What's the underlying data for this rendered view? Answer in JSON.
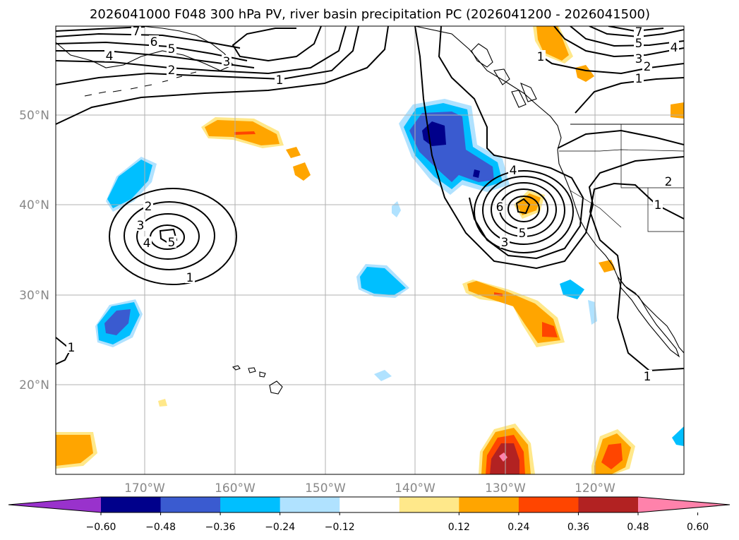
{
  "title": "2026041000 F048 300 hPa PV, river basin precipitation PC (2026041200 - 2026041500)",
  "map": {
    "lon_labels": [
      "170°W",
      "160°W",
      "150°W",
      "140°W",
      "130°W",
      "120°W"
    ],
    "lat_labels": [
      "50°N",
      "40°N",
      "30°N",
      "20°N"
    ],
    "contour_levels": [
      "1",
      "1",
      "1",
      "1",
      "1",
      "1",
      "2",
      "2",
      "2",
      "3",
      "3",
      "3",
      "4",
      "4",
      "4",
      "5",
      "5",
      "5",
      "6",
      "6",
      "7",
      "7"
    ]
  },
  "colorbar": {
    "ticks": [
      "−0.60",
      "−0.48",
      "−0.36",
      "−0.24",
      "−0.12",
      "0.12",
      "0.24",
      "0.36",
      "0.48",
      "0.60"
    ],
    "colors": [
      "#9932cc",
      "#00008b",
      "#3a5bd0",
      "#00bfff",
      "#b0e2ff",
      "#ffffff",
      "#ffe88a",
      "#ffa500",
      "#ff4500",
      "#b22222",
      "#ff82ab"
    ]
  },
  "fill_colors": {
    "neg_light": "#b0e2ff",
    "neg_mid": "#00bfff",
    "neg_strong": "#3a5bd0",
    "neg_max": "#00008b",
    "pos_light": "#ffe88a",
    "pos_mid": "#ffa500",
    "pos_strong": "#ff4500",
    "pos_max": "#b22222",
    "pos_extreme": "#ff82ab"
  }
}
